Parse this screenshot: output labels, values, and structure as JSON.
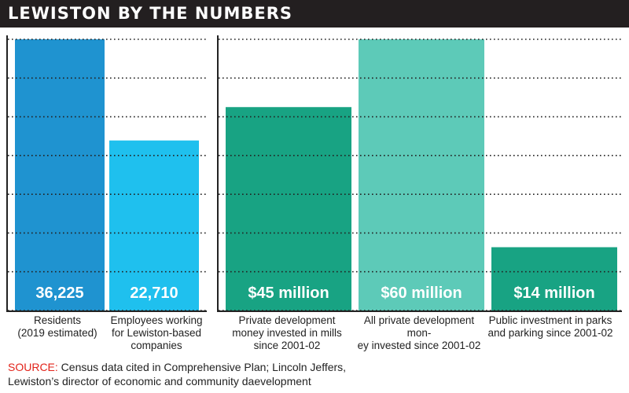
{
  "header": {
    "title": "LEWISTON BY THE NUMBERS"
  },
  "chart_data": [
    {
      "type": "bar",
      "title": "",
      "categories": [
        "Residents\n(2019 estimated)",
        "Employees working\nfor Lewiston-based\ncompanies"
      ],
      "values": [
        36225,
        22710
      ],
      "data_labels": [
        "36,225",
        "22,710"
      ],
      "colors": [
        "#1f93d0",
        "#1fc0ee"
      ],
      "ylim": [
        0,
        36225
      ],
      "grid": true,
      "gridlines": 8
    },
    {
      "type": "bar",
      "title": "",
      "categories": [
        "Private development\nmoney invested in mills\nsince 2001-02",
        "All private development mon-\ney invested since 2001-02",
        "Public investment in parks\nand parking since 2001-02"
      ],
      "values": [
        45,
        60,
        14
      ],
      "units": "million dollars",
      "data_labels": [
        "$45 million",
        "$60 million",
        "$14 million"
      ],
      "colors": [
        "#18a383",
        "#5dcab8",
        "#18a383"
      ],
      "ylim": [
        0,
        60
      ],
      "grid": true,
      "gridlines": 8
    }
  ],
  "source": {
    "label": "SOURCE:",
    "text": " Census data cited in Comprehensive Plan; Lincoln Jeffers,\nLewiston’s director of economic and community daevelopment"
  }
}
